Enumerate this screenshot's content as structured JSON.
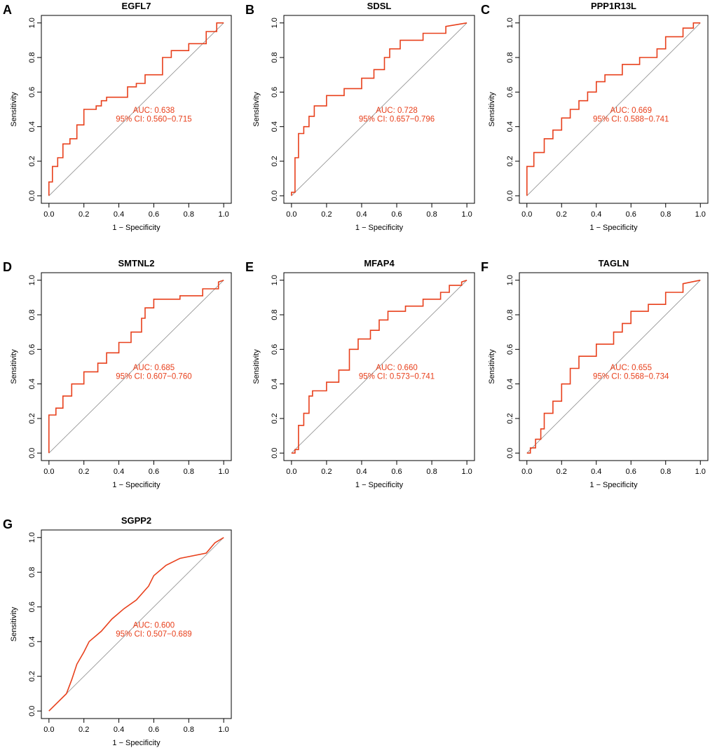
{
  "colors": {
    "curve": "#e8401c",
    "diagonal": "#8c8c8c",
    "axis": "#000000"
  },
  "chart_data": [
    {
      "type": "line",
      "letter": "A",
      "title": "EGFL7",
      "xlabel": "1 − Specificity",
      "ylabel": "Sensitivity",
      "xlim": [
        0,
        1
      ],
      "ylim": [
        0,
        1
      ],
      "xticks": [
        "0.0",
        "0.2",
        "0.4",
        "0.6",
        "0.8",
        "1.0"
      ],
      "yticks": [
        "0.0",
        "0.2",
        "0.4",
        "0.6",
        "0.8",
        "1.0"
      ],
      "auc_text": "AUC: 0.638",
      "ci_text": "95% CI: 0.560−0.715",
      "series": [
        {
          "name": "ROC",
          "x": [
            0,
            0,
            0.02,
            0.02,
            0.05,
            0.05,
            0.08,
            0.08,
            0.12,
            0.12,
            0.16,
            0.16,
            0.2,
            0.2,
            0.22,
            0.22,
            0.27,
            0.27,
            0.3,
            0.3,
            0.33,
            0.33,
            0.45,
            0.45,
            0.5,
            0.5,
            0.55,
            0.55,
            0.65,
            0.65,
            0.7,
            0.7,
            0.8,
            0.8,
            0.9,
            0.9,
            0.96,
            0.96,
            1
          ],
          "y": [
            0,
            0.08,
            0.08,
            0.17,
            0.17,
            0.22,
            0.22,
            0.3,
            0.3,
            0.33,
            0.33,
            0.41,
            0.41,
            0.5,
            0.5,
            0.5,
            0.5,
            0.52,
            0.52,
            0.55,
            0.55,
            0.57,
            0.57,
            0.63,
            0.63,
            0.65,
            0.65,
            0.7,
            0.7,
            0.8,
            0.8,
            0.84,
            0.84,
            0.88,
            0.88,
            0.95,
            0.95,
            1,
            1
          ]
        }
      ]
    },
    {
      "type": "line",
      "letter": "B",
      "title": "SDSL",
      "xlabel": "1 − Specificity",
      "ylabel": "Sensitivity",
      "xlim": [
        0,
        1
      ],
      "ylim": [
        0,
        1
      ],
      "xticks": [
        "0.0",
        "0.2",
        "0.4",
        "0.6",
        "0.8",
        "1.0"
      ],
      "yticks": [
        "0.0",
        "0.2",
        "0.4",
        "0.6",
        "0.8",
        "1.0"
      ],
      "auc_text": "AUC: 0.728",
      "ci_text": "95% CI: 0.657−0.796",
      "series": [
        {
          "name": "ROC",
          "x": [
            0,
            0,
            0.02,
            0.02,
            0.04,
            0.04,
            0.07,
            0.07,
            0.1,
            0.1,
            0.13,
            0.13,
            0.2,
            0.2,
            0.3,
            0.3,
            0.4,
            0.4,
            0.47,
            0.47,
            0.53,
            0.53,
            0.56,
            0.56,
            0.62,
            0.62,
            0.75,
            0.75,
            0.88,
            0.88,
            1
          ],
          "y": [
            0,
            0.02,
            0.02,
            0.22,
            0.22,
            0.36,
            0.36,
            0.4,
            0.4,
            0.46,
            0.46,
            0.52,
            0.52,
            0.58,
            0.58,
            0.62,
            0.62,
            0.68,
            0.68,
            0.73,
            0.73,
            0.8,
            0.8,
            0.85,
            0.85,
            0.9,
            0.9,
            0.94,
            0.94,
            0.98,
            1
          ]
        }
      ]
    },
    {
      "type": "line",
      "letter": "C",
      "title": "PPP1R13L",
      "xlabel": "1 − Specificity",
      "ylabel": "Sensitivity",
      "xlim": [
        0,
        1
      ],
      "ylim": [
        0,
        1
      ],
      "xticks": [
        "0.0",
        "0.2",
        "0.4",
        "0.6",
        "0.8",
        "1.0"
      ],
      "yticks": [
        "0.0",
        "0.2",
        "0.4",
        "0.6",
        "0.8",
        "1.0"
      ],
      "auc_text": "AUC: 0.669",
      "ci_text": "95% CI: 0.588−0.741",
      "series": [
        {
          "name": "ROC",
          "x": [
            0,
            0,
            0.04,
            0.04,
            0.1,
            0.1,
            0.15,
            0.15,
            0.2,
            0.2,
            0.25,
            0.25,
            0.3,
            0.3,
            0.35,
            0.35,
            0.4,
            0.4,
            0.45,
            0.45,
            0.55,
            0.55,
            0.65,
            0.65,
            0.75,
            0.75,
            0.8,
            0.8,
            0.9,
            0.9,
            0.96,
            0.96,
            1
          ],
          "y": [
            0,
            0.17,
            0.17,
            0.25,
            0.25,
            0.33,
            0.33,
            0.38,
            0.38,
            0.45,
            0.45,
            0.5,
            0.5,
            0.55,
            0.55,
            0.6,
            0.6,
            0.66,
            0.66,
            0.7,
            0.7,
            0.76,
            0.76,
            0.8,
            0.8,
            0.85,
            0.85,
            0.92,
            0.92,
            0.97,
            0.97,
            1,
            1
          ]
        }
      ]
    },
    {
      "type": "line",
      "letter": "D",
      "title": "SMTNL2",
      "xlabel": "1 − Specificity",
      "ylabel": "Sensitivity",
      "xlim": [
        0,
        1
      ],
      "ylim": [
        0,
        1
      ],
      "xticks": [
        "0.0",
        "0.2",
        "0.4",
        "0.6",
        "0.8",
        "1.0"
      ],
      "yticks": [
        "0.0",
        "0.2",
        "0.4",
        "0.6",
        "0.8",
        "1.0"
      ],
      "auc_text": "AUC: 0.685",
      "ci_text": "95% CI: 0.607−0.760",
      "series": [
        {
          "name": "ROC",
          "x": [
            0,
            0,
            0.04,
            0.04,
            0.08,
            0.08,
            0.13,
            0.13,
            0.2,
            0.2,
            0.28,
            0.28,
            0.33,
            0.33,
            0.4,
            0.4,
            0.47,
            0.47,
            0.53,
            0.53,
            0.55,
            0.55,
            0.6,
            0.6,
            0.75,
            0.75,
            0.88,
            0.88,
            0.97,
            0.97,
            1
          ],
          "y": [
            0,
            0.22,
            0.22,
            0.26,
            0.26,
            0.33,
            0.33,
            0.4,
            0.4,
            0.47,
            0.47,
            0.52,
            0.52,
            0.58,
            0.58,
            0.64,
            0.64,
            0.7,
            0.7,
            0.78,
            0.78,
            0.84,
            0.84,
            0.89,
            0.89,
            0.91,
            0.91,
            0.95,
            0.95,
            0.99,
            1
          ]
        }
      ]
    },
    {
      "type": "line",
      "letter": "E",
      "title": "MFAP4",
      "xlabel": "1 − Specificity",
      "ylabel": "Sensitivity",
      "xlim": [
        0,
        1
      ],
      "ylim": [
        0,
        1
      ],
      "xticks": [
        "0.0",
        "0.2",
        "0.4",
        "0.6",
        "0.8",
        "1.0"
      ],
      "yticks": [
        "0.0",
        "0.2",
        "0.4",
        "0.6",
        "0.8",
        "1.0"
      ],
      "auc_text": "AUC: 0.660",
      "ci_text": "95% CI: 0.573−0.741",
      "series": [
        {
          "name": "ROC",
          "x": [
            0,
            0.02,
            0.02,
            0.04,
            0.04,
            0.07,
            0.07,
            0.1,
            0.1,
            0.12,
            0.12,
            0.2,
            0.2,
            0.27,
            0.27,
            0.33,
            0.33,
            0.38,
            0.38,
            0.45,
            0.45,
            0.5,
            0.5,
            0.55,
            0.55,
            0.65,
            0.65,
            0.75,
            0.75,
            0.85,
            0.85,
            0.9,
            0.9,
            0.97,
            0.97,
            1
          ],
          "y": [
            0,
            0,
            0.02,
            0.02,
            0.16,
            0.16,
            0.23,
            0.23,
            0.33,
            0.33,
            0.36,
            0.36,
            0.41,
            0.41,
            0.48,
            0.48,
            0.6,
            0.6,
            0.66,
            0.66,
            0.71,
            0.71,
            0.77,
            0.77,
            0.82,
            0.82,
            0.85,
            0.85,
            0.89,
            0.89,
            0.93,
            0.93,
            0.97,
            0.97,
            0.99,
            1
          ]
        }
      ]
    },
    {
      "type": "line",
      "letter": "F",
      "title": "TAGLN",
      "xlabel": "1 − Specificity",
      "ylabel": "Sensitivity",
      "xlim": [
        0,
        1
      ],
      "ylim": [
        0,
        1
      ],
      "xticks": [
        "0.0",
        "0.2",
        "0.4",
        "0.6",
        "0.8",
        "1.0"
      ],
      "yticks": [
        "0.0",
        "0.2",
        "0.4",
        "0.6",
        "0.8",
        "1.0"
      ],
      "auc_text": "AUC: 0.655",
      "ci_text": "95% CI: 0.568−0.734",
      "series": [
        {
          "name": "ROC",
          "x": [
            0,
            0.02,
            0.02,
            0.05,
            0.05,
            0.08,
            0.08,
            0.1,
            0.1,
            0.15,
            0.15,
            0.2,
            0.2,
            0.25,
            0.25,
            0.3,
            0.3,
            0.4,
            0.4,
            0.5,
            0.5,
            0.55,
            0.55,
            0.6,
            0.6,
            0.7,
            0.7,
            0.8,
            0.8,
            0.9,
            0.9,
            1
          ],
          "y": [
            0,
            0,
            0.03,
            0.03,
            0.08,
            0.08,
            0.14,
            0.14,
            0.23,
            0.23,
            0.3,
            0.3,
            0.4,
            0.4,
            0.49,
            0.49,
            0.56,
            0.56,
            0.63,
            0.63,
            0.7,
            0.7,
            0.75,
            0.75,
            0.82,
            0.82,
            0.86,
            0.86,
            0.93,
            0.93,
            0.98,
            1
          ]
        }
      ]
    },
    {
      "type": "line",
      "letter": "G",
      "title": "SGPP2",
      "xlabel": "1 − Specificity",
      "ylabel": "Sensitivity",
      "xlim": [
        0,
        1
      ],
      "ylim": [
        0,
        1
      ],
      "xticks": [
        "0.0",
        "0.2",
        "0.4",
        "0.6",
        "0.8",
        "1.0"
      ],
      "yticks": [
        "0.0",
        "0.2",
        "0.4",
        "0.6",
        "0.8",
        "1.0"
      ],
      "auc_text": "AUC: 0.600",
      "ci_text": "95% CI: 0.507−0.689",
      "series": [
        {
          "name": "ROC",
          "x": [
            0,
            0.03,
            0.03,
            0.1,
            0.1,
            0.13,
            0.13,
            0.16,
            0.16,
            0.2,
            0.2,
            0.23,
            0.23,
            0.3,
            0.3,
            0.36,
            0.36,
            0.43,
            0.43,
            0.5,
            0.5,
            0.57,
            0.57,
            0.6,
            0.6,
            0.67,
            0.67,
            0.75,
            0.75,
            0.9,
            0.9,
            0.95,
            0.95,
            1
          ],
          "y": [
            0,
            0.03,
            0.03,
            0.1,
            0.1,
            0.18,
            0.18,
            0.27,
            0.27,
            0.34,
            0.34,
            0.4,
            0.4,
            0.46,
            0.46,
            0.53,
            0.53,
            0.59,
            0.59,
            0.64,
            0.64,
            0.72,
            0.72,
            0.78,
            0.78,
            0.84,
            0.84,
            0.88,
            0.88,
            0.91,
            0.91,
            0.97,
            0.97,
            1
          ]
        }
      ]
    }
  ]
}
